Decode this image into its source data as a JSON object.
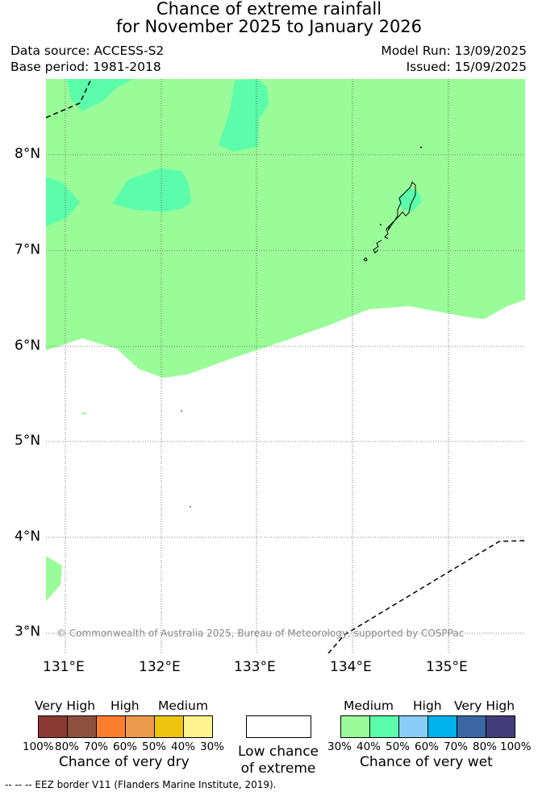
{
  "title": {
    "line1": "Chance of extreme rainfall",
    "line2": "for November 2025 to January 2026"
  },
  "meta": {
    "data_source": "Data source: ACCESS-S2",
    "base_period": "Base period: 1981-2018",
    "model_run": "Model Run: 13/09/2025",
    "issued": "Issued: 15/09/2025"
  },
  "map": {
    "lat_ticks": [
      "8°N",
      "7°N",
      "6°N",
      "5°N",
      "4°N",
      "3°N"
    ],
    "lon_ticks": [
      "131°E",
      "132°E",
      "133°E",
      "134°E",
      "135°E"
    ],
    "lat_range": [
      2.8,
      8.8
    ],
    "lon_range": [
      130.8,
      135.8
    ],
    "grid": true,
    "copyright": "© Commonwealth of Australia 2025, Bureau of Meteorology, supported by COSPPac",
    "colors": {
      "medium_wet": "#9afc98",
      "medium_high_wet": "#5bfcaa"
    }
  },
  "legend_dry": {
    "category_labels": [
      "Very High",
      "High",
      "Medium"
    ],
    "percent_labels": [
      "100%",
      "80%",
      "70%",
      "60%",
      "50%",
      "40%",
      "30%"
    ],
    "title": "Chance of very dry",
    "colors": [
      "#8b3a33",
      "#8d5040",
      "#fb7f2a",
      "#ec9a4c",
      "#efc40e",
      "#fdf490"
    ]
  },
  "legend_low": {
    "line1": "Low chance",
    "line2": "of extreme",
    "color": "#ffffff"
  },
  "legend_wet": {
    "category_labels": [
      "Medium",
      "High",
      "Very High"
    ],
    "percent_labels": [
      "30%",
      "40%",
      "50%",
      "60%",
      "70%",
      "80%",
      "100%"
    ],
    "title": "Chance of very wet",
    "colors": [
      "#9afc98",
      "#5bfcaa",
      "#8acdf9",
      "#00b2ec",
      "#3b67a4",
      "#423d7a"
    ]
  },
  "footer": {
    "text": "--  --  -- EEZ border V11 (Flanders Marine Institute, 2019)."
  }
}
